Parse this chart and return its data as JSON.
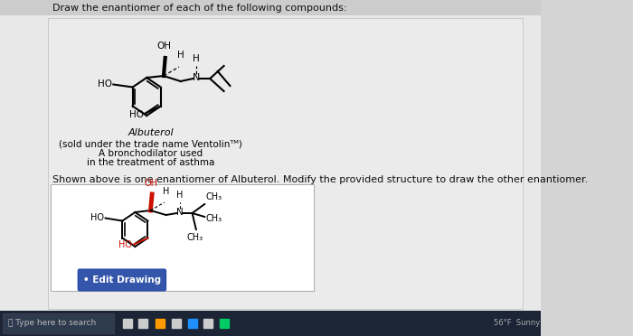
{
  "bg_color": "#d4d4d4",
  "content_bg": "#e8e8e8",
  "white_box_bg": "#ffffff",
  "title_text": "Draw the enantiomer of each of the following compounds:",
  "label_albuterol": "Albuterol",
  "label_sold": "(sold under the trade name Ventolinᵀᴹ)",
  "label_broncho": "A bronchodilator used",
  "label_treatment": "in the treatment of asthma",
  "shown_text": "Shown above is one enantiomer of Albuterol. Modify the provided structure to draw the other enantiomer.",
  "edit_btn_text": "• Edit Drawing",
  "search_text": "Type here to search",
  "taskbar_bg": "#1c2536",
  "taskbar_icon_color": "#c8c8c8"
}
